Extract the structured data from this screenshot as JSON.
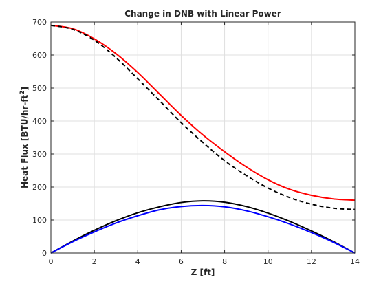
{
  "chart_data": {
    "type": "line",
    "title": "Change in DNB with Linear Power",
    "xlabel": "Z [ft]",
    "ylabel": {
      "main": "Heat Flux [BTU/hr-ft",
      "superscript": "2",
      "suffix": "]"
    },
    "xlim": [
      0,
      14
    ],
    "ylim": [
      0,
      700
    ],
    "xticks": [
      0,
      2,
      4,
      6,
      8,
      10,
      12,
      14
    ],
    "yticks": [
      0,
      100,
      200,
      300,
      400,
      500,
      600,
      700
    ],
    "grid": true,
    "series": [
      {
        "color": "#ff0000",
        "dash": "solid",
        "x": [
          0,
          1,
          2,
          3,
          4,
          5,
          6,
          7,
          8,
          9,
          10,
          11,
          12,
          13,
          14
        ],
        "y": [
          690,
          680,
          649,
          604,
          547,
          482,
          417,
          358,
          307,
          261,
          222,
          193,
          175,
          164,
          160
        ]
      },
      {
        "color": "#000000",
        "dash": "dashed",
        "x": [
          0,
          1,
          2,
          3,
          4,
          5,
          6,
          7,
          8,
          9,
          10,
          11,
          12,
          13,
          14
        ],
        "y": [
          690,
          678,
          645,
          592,
          528,
          462,
          395,
          335,
          280,
          235,
          197,
          168,
          148,
          136,
          132
        ]
      },
      {
        "color": "#000000",
        "dash": "solid",
        "x": [
          0,
          1,
          2,
          3,
          4,
          5,
          6,
          7,
          8,
          9,
          10,
          11,
          12,
          13,
          14
        ],
        "y": [
          0,
          36,
          69,
          98,
          122,
          140,
          153,
          158,
          154,
          141,
          121,
          96,
          67,
          35,
          0
        ]
      },
      {
        "color": "#0000ff",
        "dash": "solid",
        "x": [
          0,
          1,
          2,
          3,
          4,
          5,
          6,
          7,
          8,
          9,
          10,
          11,
          12,
          13,
          14
        ],
        "y": [
          0,
          34,
          64,
          91,
          113,
          131,
          141,
          144,
          140,
          128,
          110,
          88,
          62,
          33,
          0
        ]
      }
    ]
  }
}
